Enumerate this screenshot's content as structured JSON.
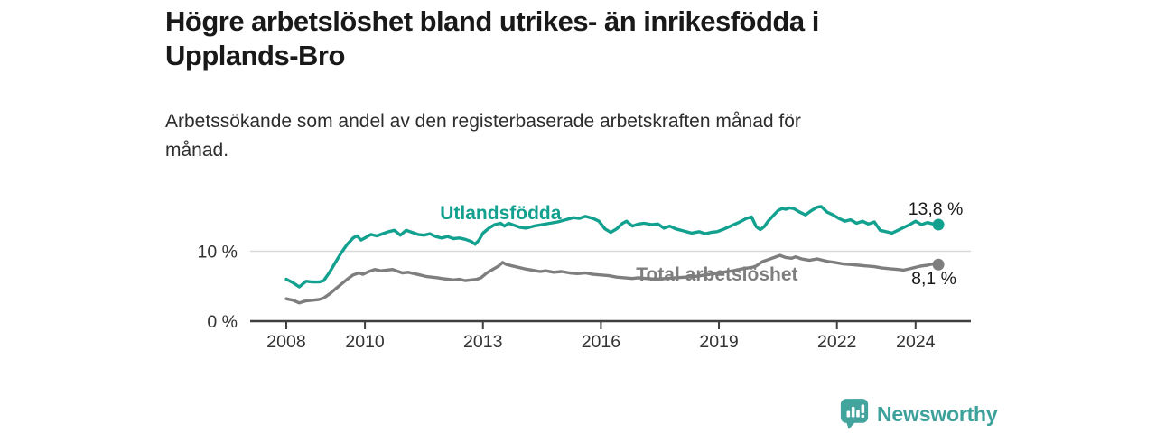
{
  "header": {
    "title_lines": [
      "Högre arbetslöshet bland utrikes- än inrikesfödda i",
      "Upplands-Bro"
    ],
    "subtitle_lines": [
      "Arbetssökande som andel av den registerbaserade arbetskraften månad för",
      "månad."
    ]
  },
  "footer": {
    "brand": "Newsworthy",
    "brand_color": "#3ba19a"
  },
  "chart_data": {
    "type": "line",
    "title": "Högre arbetslöshet bland utrikes- än inrikesfödda i Upplands-Bro",
    "subtitle": "Arbetssökande som andel av den registerbaserade arbetskraften månad för månad.",
    "xlabel": "",
    "ylabel": "",
    "x_unit": "year",
    "y_unit": "%",
    "xlim": [
      2007.9,
      2025.5
    ],
    "ylim": [
      0,
      18
    ],
    "grid": "horizontal gridline at 10 % only",
    "legend_position": "inline labels on lines",
    "x_ticks": [
      {
        "year": 2008,
        "label": "2008"
      },
      {
        "year": 2010,
        "label": "2010"
      },
      {
        "year": 2013,
        "label": "2013"
      },
      {
        "year": 2016,
        "label": "2016"
      },
      {
        "year": 2019,
        "label": "2019"
      },
      {
        "year": 2022,
        "label": "2022"
      },
      {
        "year": 2024,
        "label": "2024"
      }
    ],
    "y_ticks": [
      {
        "value": 0,
        "label": "0 %"
      },
      {
        "value": 10,
        "label": "10 %"
      }
    ],
    "series": [
      {
        "id": "utlandsfodda",
        "name": "Utlandsfödda",
        "color": "#12a08f",
        "end_value": 13.8,
        "end_label": "13,8 %",
        "end_label_offset": [
          -3,
          -11
        ],
        "label_anchor": {
          "year": 2013.45,
          "pct": 14.6
        },
        "points": [
          [
            2008.0,
            6.0
          ],
          [
            2008.17,
            5.5
          ],
          [
            2008.33,
            4.9
          ],
          [
            2008.5,
            5.7
          ],
          [
            2008.67,
            5.6
          ],
          [
            2008.83,
            5.6
          ],
          [
            2008.95,
            5.8
          ],
          [
            2009.1,
            7.0
          ],
          [
            2009.25,
            8.4
          ],
          [
            2009.4,
            9.8
          ],
          [
            2009.55,
            11.0
          ],
          [
            2009.7,
            11.9
          ],
          [
            2009.8,
            12.2
          ],
          [
            2009.9,
            11.6
          ],
          [
            2010.0,
            11.9
          ],
          [
            2010.15,
            12.4
          ],
          [
            2010.3,
            12.2
          ],
          [
            2010.45,
            12.5
          ],
          [
            2010.6,
            12.8
          ],
          [
            2010.75,
            13.0
          ],
          [
            2010.9,
            12.3
          ],
          [
            2011.05,
            13.0
          ],
          [
            2011.2,
            12.7
          ],
          [
            2011.35,
            12.4
          ],
          [
            2011.5,
            12.3
          ],
          [
            2011.65,
            12.5
          ],
          [
            2011.8,
            12.1
          ],
          [
            2011.95,
            11.9
          ],
          [
            2012.1,
            12.1
          ],
          [
            2012.25,
            11.8
          ],
          [
            2012.4,
            11.9
          ],
          [
            2012.55,
            11.7
          ],
          [
            2012.7,
            11.4
          ],
          [
            2012.8,
            11.0
          ],
          [
            2012.9,
            11.6
          ],
          [
            2013.0,
            12.6
          ],
          [
            2013.15,
            13.3
          ],
          [
            2013.3,
            13.8
          ],
          [
            2013.45,
            14.0
          ],
          [
            2013.55,
            13.6
          ],
          [
            2013.65,
            14.0
          ],
          [
            2013.8,
            13.7
          ],
          [
            2013.95,
            13.4
          ],
          [
            2014.1,
            13.3
          ],
          [
            2014.3,
            13.6
          ],
          [
            2014.5,
            13.8
          ],
          [
            2014.7,
            14.0
          ],
          [
            2014.9,
            14.2
          ],
          [
            2015.1,
            14.5
          ],
          [
            2015.3,
            14.8
          ],
          [
            2015.45,
            14.7
          ],
          [
            2015.6,
            15.0
          ],
          [
            2015.8,
            14.7
          ],
          [
            2015.95,
            14.3
          ],
          [
            2016.1,
            13.2
          ],
          [
            2016.25,
            12.7
          ],
          [
            2016.4,
            13.2
          ],
          [
            2016.55,
            14.0
          ],
          [
            2016.65,
            14.3
          ],
          [
            2016.8,
            13.6
          ],
          [
            2016.95,
            13.9
          ],
          [
            2017.1,
            14.0
          ],
          [
            2017.3,
            13.8
          ],
          [
            2017.45,
            13.9
          ],
          [
            2017.6,
            13.3
          ],
          [
            2017.75,
            13.6
          ],
          [
            2017.9,
            13.2
          ],
          [
            2018.1,
            12.9
          ],
          [
            2018.3,
            12.6
          ],
          [
            2018.5,
            12.8
          ],
          [
            2018.65,
            12.5
          ],
          [
            2018.8,
            12.7
          ],
          [
            2018.95,
            12.8
          ],
          [
            2019.1,
            13.1
          ],
          [
            2019.3,
            13.6
          ],
          [
            2019.5,
            14.1
          ],
          [
            2019.7,
            14.7
          ],
          [
            2019.83,
            14.9
          ],
          [
            2019.95,
            13.5
          ],
          [
            2020.05,
            13.1
          ],
          [
            2020.15,
            13.5
          ],
          [
            2020.25,
            14.3
          ],
          [
            2020.35,
            14.9
          ],
          [
            2020.5,
            15.8
          ],
          [
            2020.6,
            16.1
          ],
          [
            2020.7,
            16.0
          ],
          [
            2020.8,
            16.2
          ],
          [
            2020.9,
            16.1
          ],
          [
            2021.05,
            15.6
          ],
          [
            2021.2,
            15.2
          ],
          [
            2021.35,
            15.8
          ],
          [
            2021.5,
            16.3
          ],
          [
            2021.6,
            16.4
          ],
          [
            2021.75,
            15.6
          ],
          [
            2021.9,
            15.2
          ],
          [
            2022.05,
            14.7
          ],
          [
            2022.2,
            14.3
          ],
          [
            2022.35,
            14.5
          ],
          [
            2022.5,
            14.0
          ],
          [
            2022.65,
            14.3
          ],
          [
            2022.8,
            13.9
          ],
          [
            2022.95,
            14.2
          ],
          [
            2023.1,
            13.0
          ],
          [
            2023.25,
            12.8
          ],
          [
            2023.4,
            12.6
          ],
          [
            2023.55,
            13.0
          ],
          [
            2023.7,
            13.4
          ],
          [
            2023.85,
            13.8
          ],
          [
            2024.0,
            14.3
          ],
          [
            2024.15,
            13.8
          ],
          [
            2024.3,
            14.1
          ],
          [
            2024.45,
            13.9
          ],
          [
            2024.58,
            13.8
          ]
        ]
      },
      {
        "id": "total",
        "name": "Total arbetslöshet",
        "color": "#7e7e7e",
        "end_value": 8.1,
        "end_label": "8,1 %",
        "end_label_offset": [
          -5,
          22
        ],
        "label_anchor": {
          "year": 2018.95,
          "pct": 5.8
        },
        "points": [
          [
            2008.0,
            3.2
          ],
          [
            2008.17,
            3.0
          ],
          [
            2008.33,
            2.6
          ],
          [
            2008.5,
            2.9
          ],
          [
            2008.67,
            3.0
          ],
          [
            2008.83,
            3.1
          ],
          [
            2008.95,
            3.3
          ],
          [
            2009.1,
            3.9
          ],
          [
            2009.25,
            4.6
          ],
          [
            2009.4,
            5.3
          ],
          [
            2009.55,
            6.0
          ],
          [
            2009.7,
            6.6
          ],
          [
            2009.85,
            6.9
          ],
          [
            2009.95,
            6.7
          ],
          [
            2010.1,
            7.1
          ],
          [
            2010.25,
            7.4
          ],
          [
            2010.4,
            7.2
          ],
          [
            2010.55,
            7.3
          ],
          [
            2010.7,
            7.4
          ],
          [
            2010.85,
            7.1
          ],
          [
            2010.95,
            6.9
          ],
          [
            2011.1,
            7.0
          ],
          [
            2011.25,
            6.8
          ],
          [
            2011.4,
            6.6
          ],
          [
            2011.55,
            6.4
          ],
          [
            2011.7,
            6.3
          ],
          [
            2011.85,
            6.2
          ],
          [
            2011.95,
            6.1
          ],
          [
            2012.1,
            6.0
          ],
          [
            2012.25,
            5.9
          ],
          [
            2012.4,
            6.0
          ],
          [
            2012.55,
            5.8
          ],
          [
            2012.7,
            5.9
          ],
          [
            2012.85,
            6.0
          ],
          [
            2012.95,
            6.2
          ],
          [
            2013.1,
            6.9
          ],
          [
            2013.25,
            7.4
          ],
          [
            2013.4,
            7.9
          ],
          [
            2013.5,
            8.4
          ],
          [
            2013.6,
            8.1
          ],
          [
            2013.75,
            7.9
          ],
          [
            2013.9,
            7.7
          ],
          [
            2014.05,
            7.5
          ],
          [
            2014.25,
            7.3
          ],
          [
            2014.45,
            7.1
          ],
          [
            2014.6,
            7.2
          ],
          [
            2014.8,
            7.0
          ],
          [
            2015.0,
            7.1
          ],
          [
            2015.2,
            6.9
          ],
          [
            2015.4,
            6.8
          ],
          [
            2015.6,
            6.9
          ],
          [
            2015.8,
            6.7
          ],
          [
            2016.0,
            6.6
          ],
          [
            2016.2,
            6.5
          ],
          [
            2016.4,
            6.3
          ],
          [
            2016.6,
            6.2
          ],
          [
            2016.8,
            6.1
          ],
          [
            2016.95,
            6.2
          ],
          [
            2017.15,
            6.1
          ],
          [
            2017.4,
            6.0
          ],
          [
            2017.65,
            6.1
          ],
          [
            2017.9,
            6.2
          ],
          [
            2018.15,
            6.3
          ],
          [
            2018.4,
            6.4
          ],
          [
            2018.65,
            6.6
          ],
          [
            2018.9,
            6.8
          ],
          [
            2019.1,
            7.0
          ],
          [
            2019.35,
            7.2
          ],
          [
            2019.6,
            7.5
          ],
          [
            2019.85,
            7.7
          ],
          [
            2019.95,
            7.9
          ],
          [
            2020.1,
            8.5
          ],
          [
            2020.25,
            8.8
          ],
          [
            2020.4,
            9.1
          ],
          [
            2020.55,
            9.4
          ],
          [
            2020.7,
            9.1
          ],
          [
            2020.85,
            9.0
          ],
          [
            2020.95,
            9.2
          ],
          [
            2021.1,
            8.9
          ],
          [
            2021.3,
            8.7
          ],
          [
            2021.5,
            8.9
          ],
          [
            2021.65,
            8.7
          ],
          [
            2021.8,
            8.5
          ],
          [
            2021.95,
            8.4
          ],
          [
            2022.15,
            8.2
          ],
          [
            2022.35,
            8.1
          ],
          [
            2022.55,
            8.0
          ],
          [
            2022.75,
            7.9
          ],
          [
            2022.95,
            7.8
          ],
          [
            2023.15,
            7.6
          ],
          [
            2023.35,
            7.5
          ],
          [
            2023.55,
            7.4
          ],
          [
            2023.7,
            7.3
          ],
          [
            2023.85,
            7.5
          ],
          [
            2024.0,
            7.7
          ],
          [
            2024.15,
            7.9
          ],
          [
            2024.3,
            8.0
          ],
          [
            2024.45,
            8.2
          ],
          [
            2024.58,
            8.1
          ]
        ]
      }
    ]
  }
}
